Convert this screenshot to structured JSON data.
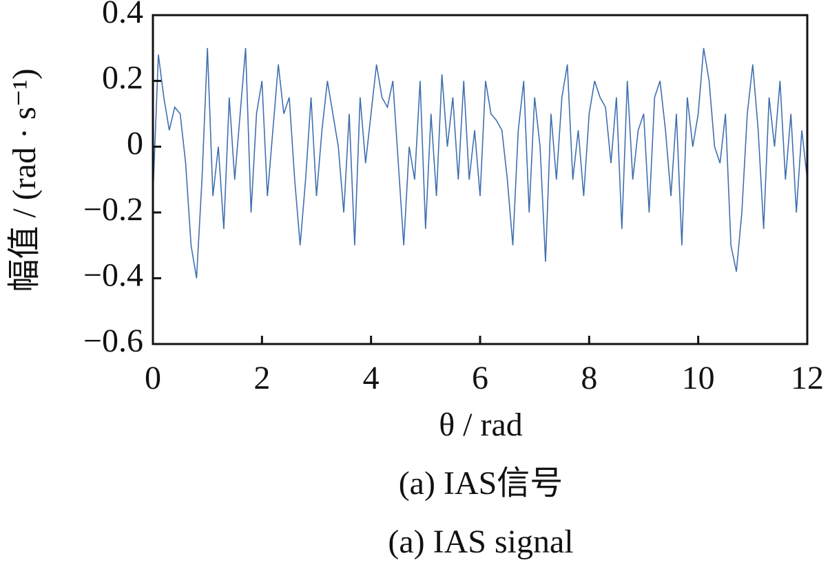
{
  "chart_data": {
    "type": "line",
    "x_label": "θ / rad",
    "y_label": "幅值 / (rad · s⁻¹)",
    "captions": [
      "(a)  IAS信号",
      "(a)  IAS signal"
    ],
    "x": [
      0,
      0.1,
      0.2,
      0.3,
      0.4,
      0.5,
      0.6,
      0.7,
      0.8,
      0.9,
      1,
      1.1,
      1.2,
      1.3,
      1.4,
      1.5,
      1.6,
      1.7,
      1.8,
      1.9,
      2,
      2.1,
      2.2,
      2.3,
      2.4,
      2.5,
      2.6,
      2.7,
      2.8,
      2.9,
      3,
      3.1,
      3.2,
      3.3,
      3.4,
      3.5,
      3.6,
      3.7,
      3.8,
      3.9,
      4,
      4.1,
      4.2,
      4.3,
      4.4,
      4.5,
      4.6,
      4.7,
      4.8,
      4.9,
      5,
      5.1,
      5.2,
      5.3,
      5.4,
      5.5,
      5.6,
      5.7,
      5.8,
      5.9,
      6,
      6.1,
      6.2,
      6.3,
      6.4,
      6.5,
      6.6,
      6.7,
      6.8,
      6.9,
      7,
      7.1,
      7.2,
      7.3,
      7.4,
      7.5,
      7.6,
      7.7,
      7.8,
      7.9,
      8,
      8.1,
      8.2,
      8.3,
      8.4,
      8.5,
      8.6,
      8.7,
      8.8,
      8.9,
      9,
      9.1,
      9.2,
      9.3,
      9.4,
      9.5,
      9.6,
      9.7,
      9.8,
      9.9,
      10,
      10.1,
      10.2,
      10.3,
      10.4,
      10.5,
      10.6,
      10.7,
      10.8,
      10.9,
      11,
      11.1,
      11.2,
      11.3,
      11.4,
      11.5,
      11.6,
      11.7,
      11.8,
      11.9,
      12
    ],
    "series": [
      {
        "color": "#3f6fae",
        "values": [
          -0.15,
          0.28,
          0.15,
          0.05,
          0.12,
          0.1,
          -0.05,
          -0.3,
          -0.4,
          -0.1,
          0.3,
          -0.15,
          0.0,
          -0.25,
          0.15,
          -0.1,
          0.1,
          0.3,
          -0.2,
          0.1,
          0.2,
          -0.15,
          0.05,
          0.25,
          0.1,
          0.15,
          -0.1,
          -0.3,
          -0.1,
          0.15,
          -0.15,
          0.05,
          0.2,
          0.1,
          0.0,
          -0.2,
          0.1,
          -0.3,
          0.15,
          -0.05,
          0.1,
          0.25,
          0.15,
          0.12,
          0.2,
          -0.05,
          -0.3,
          0.0,
          -0.1,
          0.2,
          -0.25,
          0.1,
          -0.15,
          0.22,
          0.0,
          0.15,
          -0.1,
          0.2,
          -0.1,
          0.05,
          -0.15,
          0.2,
          0.1,
          0.08,
          0.05,
          -0.1,
          -0.3,
          0.05,
          0.2,
          -0.2,
          0.15,
          0.0,
          -0.35,
          0.1,
          -0.1,
          0.15,
          0.25,
          -0.1,
          0.05,
          -0.15,
          0.1,
          0.2,
          0.15,
          0.12,
          -0.05,
          0.15,
          -0.25,
          0.2,
          -0.1,
          0.05,
          0.1,
          -0.2,
          0.15,
          0.2,
          0.05,
          -0.15,
          0.1,
          -0.3,
          0.15,
          0.0,
          0.1,
          0.3,
          0.2,
          0.0,
          -0.05,
          0.1,
          -0.3,
          -0.38,
          -0.2,
          0.1,
          0.25,
          0.05,
          -0.25,
          0.15,
          0.0,
          0.2,
          -0.1,
          0.1,
          -0.2,
          0.05,
          -0.1
        ]
      }
    ],
    "xlim": [
      0,
      12
    ],
    "xticks": [
      0,
      2,
      4,
      6,
      8,
      10,
      12
    ],
    "ylim": [
      -0.6,
      0.4
    ],
    "yticks": [
      {
        "value": -0.6,
        "label": "−0.6"
      },
      {
        "value": -0.4,
        "label": "−0.4"
      },
      {
        "value": -0.2,
        "label": "−0.2"
      },
      0,
      0.2,
      0.4
    ]
  }
}
